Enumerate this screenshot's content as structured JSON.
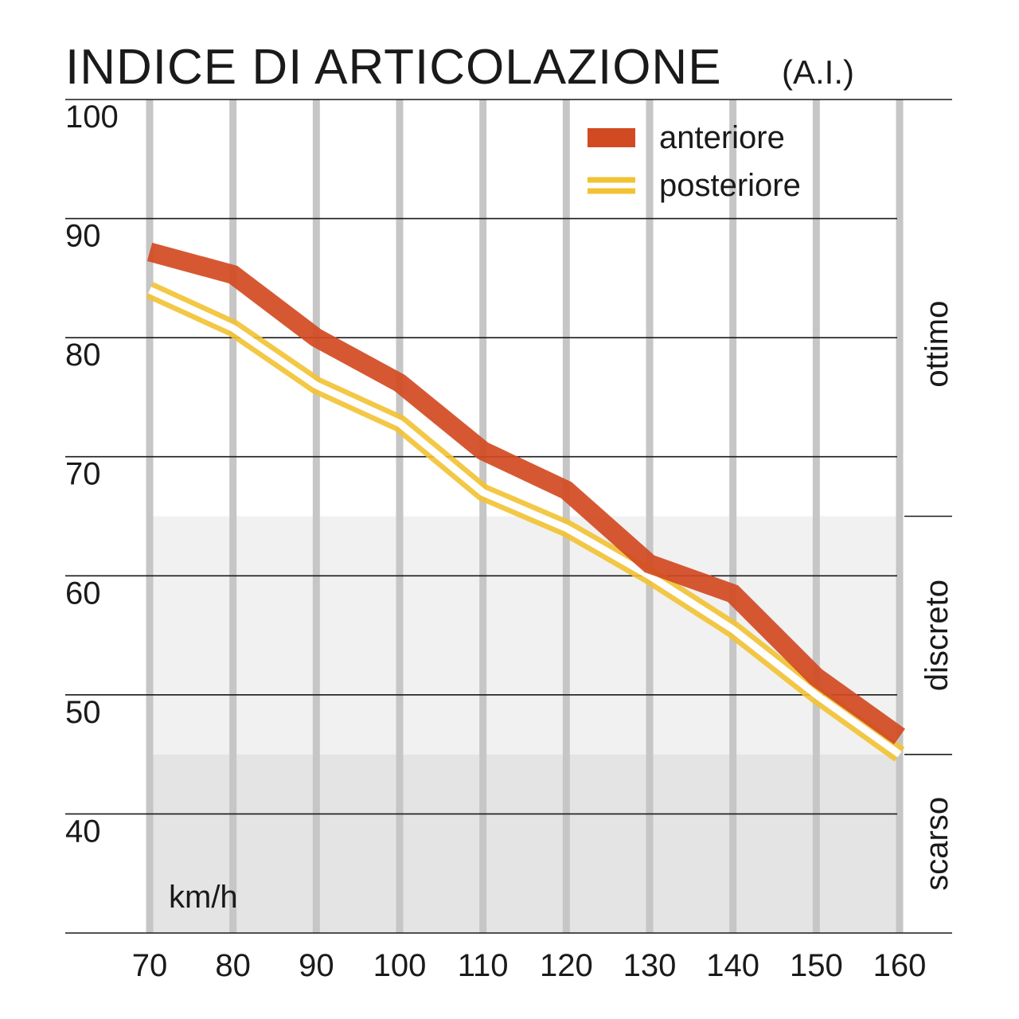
{
  "chart_data": {
    "type": "line",
    "title": "INDICE DI ARTICOLAZIONE",
    "subtitle": "(A.I.)",
    "xlabel": "km/h",
    "ylabel": "",
    "x": [
      70,
      80,
      90,
      100,
      110,
      120,
      130,
      140,
      150,
      160
    ],
    "x_tick_labels": [
      "70",
      "80",
      "90",
      "100",
      "110",
      "120",
      "130",
      "140",
      "150",
      "160"
    ],
    "ylim": [
      30,
      100
    ],
    "y_ticks": [
      40,
      50,
      60,
      70,
      80,
      90,
      100
    ],
    "y_tick_labels": [
      "40",
      "50",
      "60",
      "70",
      "80",
      "90",
      "100"
    ],
    "grid": true,
    "legend_position": "top-right",
    "series": [
      {
        "name": "anteriore",
        "color": "#d24a22",
        "style": "thick",
        "values": [
          87.2,
          85.3,
          80.0,
          76.2,
          70.5,
          67.2,
          61.0,
          58.5,
          51.5,
          46.5
        ]
      },
      {
        "name": "posteriore",
        "color": "#f2c232",
        "style": "double",
        "values": [
          84.0,
          80.8,
          76.0,
          72.8,
          67.0,
          64.0,
          60.0,
          55.5,
          50.0,
          45.0
        ]
      }
    ],
    "bands": [
      {
        "label": "ottimo",
        "from": 65,
        "to": 100,
        "color": "#ffffff"
      },
      {
        "label": "discreto",
        "from": 45,
        "to": 65,
        "color": "#f1f1f1"
      },
      {
        "label": "scarso",
        "from": 30,
        "to": 45,
        "color": "#e4e4e4"
      }
    ]
  }
}
